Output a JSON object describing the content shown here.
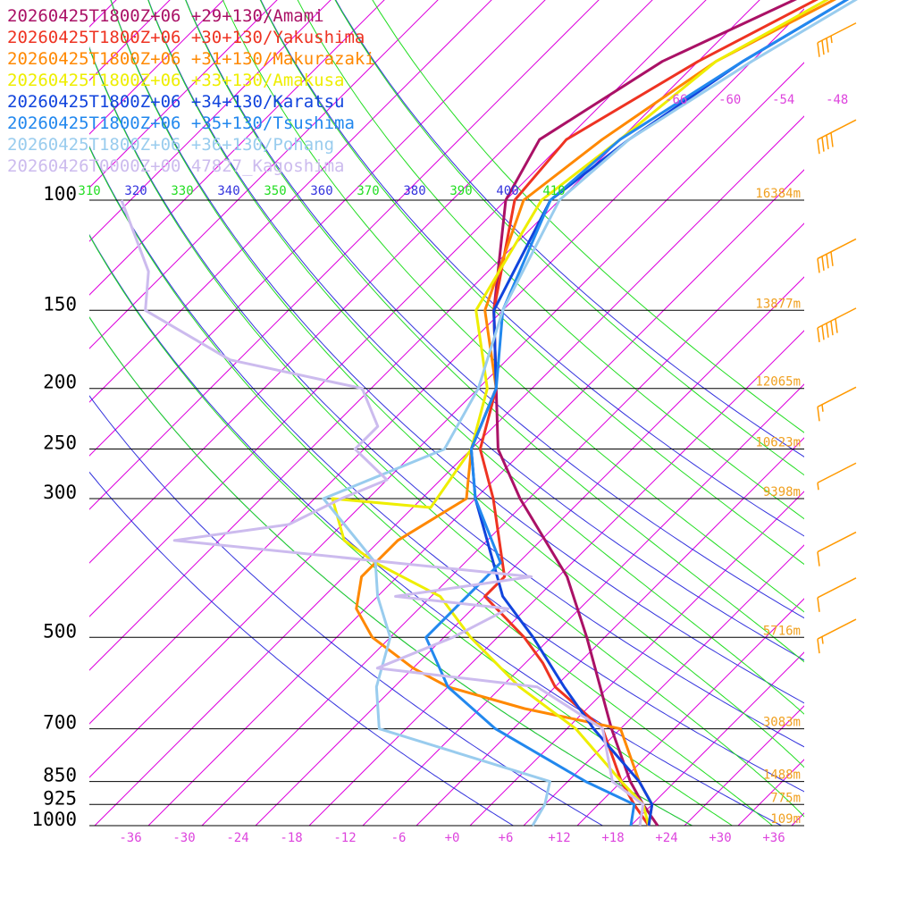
{
  "chart_data": {
    "type": "line",
    "subtype": "skew-T log-P thermodynamic diagram (temperature profiles)",
    "title": "",
    "xlabel": "",
    "ylabel": "",
    "xlim": [
      -40,
      40
    ],
    "ylim": [
      1000,
      100
    ],
    "y_scale": "log",
    "skew_deg_per_log10": 150,
    "grid": true,
    "colors": {
      "isobar": "#000000",
      "isotherm": "#dd00dd",
      "theta_dry": "#3333dd",
      "theta_e": "#22dd22",
      "axis_label": "#dd44dd",
      "height_label": "#f0a020",
      "barb": "#ff9900"
    },
    "x_tick_labels": [
      "-36",
      "-30",
      "-24",
      "-18",
      "-12",
      "-6",
      "+0",
      "+6",
      "+12",
      "+18",
      "+24",
      "+30",
      "+36"
    ],
    "x_tick_values": [
      -36,
      -30,
      -24,
      -18,
      -12,
      -6,
      0,
      6,
      12,
      18,
      24,
      30,
      36
    ],
    "pressure_levels": [
      {
        "label": "100",
        "p": 100,
        "height": "16384m"
      },
      {
        "label": "150",
        "p": 150,
        "height": "13877m"
      },
      {
        "label": "200",
        "p": 200,
        "height": "12065m"
      },
      {
        "label": "250",
        "p": 250,
        "height": "10623m"
      },
      {
        "label": "300",
        "p": 300,
        "height": "9398m"
      },
      {
        "label": "500",
        "p": 500,
        "height": "5716m"
      },
      {
        "label": "700",
        "p": 700,
        "height": "3083m"
      },
      {
        "label": "850",
        "p": 850,
        "height": "1488m"
      },
      {
        "label": "925",
        "p": 925,
        "height": "775m"
      },
      {
        "label": "1000",
        "p": 1000,
        "height": "109m"
      }
    ],
    "isotherm_top_labels": [
      "-66",
      "-60",
      "-54",
      "-48"
    ],
    "theta_labels": [
      {
        "text": "310",
        "kind": "e"
      },
      {
        "text": "320",
        "kind": "dry"
      },
      {
        "text": "330",
        "kind": "e"
      },
      {
        "text": "340",
        "kind": "dry"
      },
      {
        "text": "350",
        "kind": "e"
      },
      {
        "text": "360",
        "kind": "dry"
      },
      {
        "text": "370",
        "kind": "e"
      },
      {
        "text": "380",
        "kind": "dry"
      },
      {
        "text": "390",
        "kind": "e"
      },
      {
        "text": "400",
        "kind": "dry"
      },
      {
        "text": "410",
        "kind": "e"
      }
    ],
    "theta_dry_values": [
      280,
      290,
      300,
      310,
      320,
      330,
      340,
      350,
      360,
      380,
      400
    ],
    "theta_e_values": [
      300,
      310,
      320,
      330,
      340,
      350,
      360,
      370,
      380,
      390,
      400,
      410
    ],
    "series": [
      {
        "name": "20260425T1800Z+06 +29+130/Amami",
        "color": "#aa1166",
        "points": [
          [
            1000,
            23
          ],
          [
            925,
            19
          ],
          [
            850,
            15
          ],
          [
            700,
            7
          ],
          [
            500,
            -6
          ],
          [
            400,
            -15
          ],
          [
            300,
            -29
          ],
          [
            250,
            -37
          ],
          [
            200,
            -44
          ],
          [
            150,
            -53
          ],
          [
            100,
            -64
          ],
          [
            80,
            -67
          ],
          [
            60,
            -62
          ],
          [
            45,
            -52
          ],
          [
            35,
            -44
          ]
        ]
      },
      {
        "name": "20260425T1800Z+06 +30+130/Yakushima",
        "color": "#ee3322",
        "points": [
          [
            1000,
            22
          ],
          [
            925,
            18
          ],
          [
            850,
            14
          ],
          [
            700,
            6
          ],
          [
            600,
            -4
          ],
          [
            550,
            -8
          ],
          [
            500,
            -13
          ],
          [
            430,
            -22
          ],
          [
            400,
            -22
          ],
          [
            300,
            -32
          ],
          [
            250,
            -39
          ],
          [
            200,
            -44
          ],
          [
            150,
            -53
          ],
          [
            100,
            -63
          ],
          [
            80,
            -64
          ],
          [
            60,
            -58
          ],
          [
            45,
            -50
          ],
          [
            35,
            -43
          ]
        ]
      },
      {
        "name": "20260425T1800Z+06 +31+130/Makurazaki",
        "color": "#ff8800",
        "points": [
          [
            1000,
            22
          ],
          [
            925,
            20
          ],
          [
            850,
            16
          ],
          [
            700,
            8
          ],
          [
            650,
            -5
          ],
          [
            600,
            -16
          ],
          [
            560,
            -22
          ],
          [
            500,
            -30
          ],
          [
            450,
            -35
          ],
          [
            400,
            -38
          ],
          [
            350,
            -38
          ],
          [
            300,
            -35
          ],
          [
            250,
            -40
          ],
          [
            200,
            -44
          ],
          [
            150,
            -54
          ],
          [
            100,
            -62
          ],
          [
            80,
            -60
          ],
          [
            60,
            -56
          ],
          [
            45,
            -48
          ],
          [
            35,
            -42
          ]
        ]
      },
      {
        "name": "20260425T1800Z+06 +33+130/Amakusa",
        "color": "#eeee00",
        "points": [
          [
            1000,
            22
          ],
          [
            925,
            19
          ],
          [
            850,
            14
          ],
          [
            700,
            3
          ],
          [
            600,
            -8
          ],
          [
            500,
            -19
          ],
          [
            430,
            -27
          ],
          [
            380,
            -38
          ],
          [
            350,
            -44
          ],
          [
            300,
            -50
          ],
          [
            310,
            -38
          ],
          [
            250,
            -40
          ],
          [
            200,
            -45
          ],
          [
            150,
            -55
          ],
          [
            100,
            -60
          ],
          [
            80,
            -58
          ],
          [
            60,
            -56
          ],
          [
            45,
            -49
          ],
          [
            35,
            -42
          ]
        ]
      },
      {
        "name": "20260425T1800Z+06 +34+130/Karatsu",
        "color": "#1144dd",
        "points": [
          [
            1000,
            22
          ],
          [
            925,
            20
          ],
          [
            850,
            16
          ],
          [
            700,
            5
          ],
          [
            600,
            -3
          ],
          [
            500,
            -12
          ],
          [
            430,
            -20
          ],
          [
            350,
            -28
          ],
          [
            300,
            -34
          ],
          [
            250,
            -40
          ],
          [
            200,
            -44
          ],
          [
            150,
            -53
          ],
          [
            100,
            -59
          ],
          [
            80,
            -57
          ],
          [
            60,
            -53
          ],
          [
            45,
            -47
          ],
          [
            35,
            -41
          ]
        ]
      },
      {
        "name": "20260425T1800Z+06 +35+130/Tsushima",
        "color": "#2288ee",
        "points": [
          [
            1000,
            20
          ],
          [
            925,
            18
          ],
          [
            850,
            10
          ],
          [
            700,
            -6
          ],
          [
            600,
            -16
          ],
          [
            500,
            -24
          ],
          [
            430,
            -24
          ],
          [
            380,
            -24
          ],
          [
            300,
            -34
          ],
          [
            250,
            -40
          ],
          [
            200,
            -44
          ],
          [
            150,
            -52
          ],
          [
            100,
            -59
          ],
          [
            80,
            -58
          ],
          [
            60,
            -53
          ],
          [
            45,
            -47
          ],
          [
            35,
            -41
          ]
        ]
      },
      {
        "name": "20260425T1800Z+06 +36+130/Pohang",
        "color": "#99ccee",
        "points": [
          [
            1000,
            9
          ],
          [
            925,
            8
          ],
          [
            850,
            6
          ],
          [
            700,
            -19
          ],
          [
            600,
            -24
          ],
          [
            500,
            -28
          ],
          [
            430,
            -34
          ],
          [
            380,
            -38
          ],
          [
            300,
            -51
          ],
          [
            250,
            -43
          ],
          [
            200,
            -46
          ],
          [
            150,
            -52
          ],
          [
            100,
            -58
          ],
          [
            80,
            -57
          ],
          [
            60,
            -52
          ],
          [
            45,
            -46
          ],
          [
            35,
            -40
          ]
        ]
      },
      {
        "name": "20260426T0000Z+00 47827_Kagoshima",
        "color": "#ccbbee",
        "points": [
          [
            1000,
            21
          ],
          [
            925,
            19
          ],
          [
            850,
            13
          ],
          [
            700,
            6
          ],
          [
            600,
            -6
          ],
          [
            560,
            -26
          ],
          [
            500,
            -21
          ],
          [
            450,
            -18
          ],
          [
            430,
            -32
          ],
          [
            400,
            -19
          ],
          [
            350,
            -63
          ],
          [
            330,
            -52
          ],
          [
            300,
            -49
          ],
          [
            280,
            -46
          ],
          [
            250,
            -53
          ],
          [
            230,
            -53
          ],
          [
            200,
            -59
          ],
          [
            180,
            -77
          ],
          [
            150,
            -92
          ],
          [
            130,
            -96
          ],
          [
            110,
            -103
          ],
          [
            100,
            -107
          ]
        ]
      }
    ],
    "wind_barbs": [
      {
        "p": 10,
        "speed": 10
      },
      {
        "p": 15,
        "speed": 45
      },
      {
        "p": 22,
        "speed": 5
      },
      {
        "p": 33,
        "speed": 45
      },
      {
        "p": 42,
        "speed": 35
      },
      {
        "p": 56,
        "speed": 35
      },
      {
        "p": 80,
        "speed": 40
      },
      {
        "p": 124,
        "speed": 40
      },
      {
        "p": 160,
        "speed": 50
      },
      {
        "p": 214,
        "speed": 15
      },
      {
        "p": 283,
        "speed": 5
      },
      {
        "p": 365,
        "speed": 10
      },
      {
        "p": 432,
        "speed": 10
      },
      {
        "p": 503,
        "speed": 15
      }
    ]
  }
}
